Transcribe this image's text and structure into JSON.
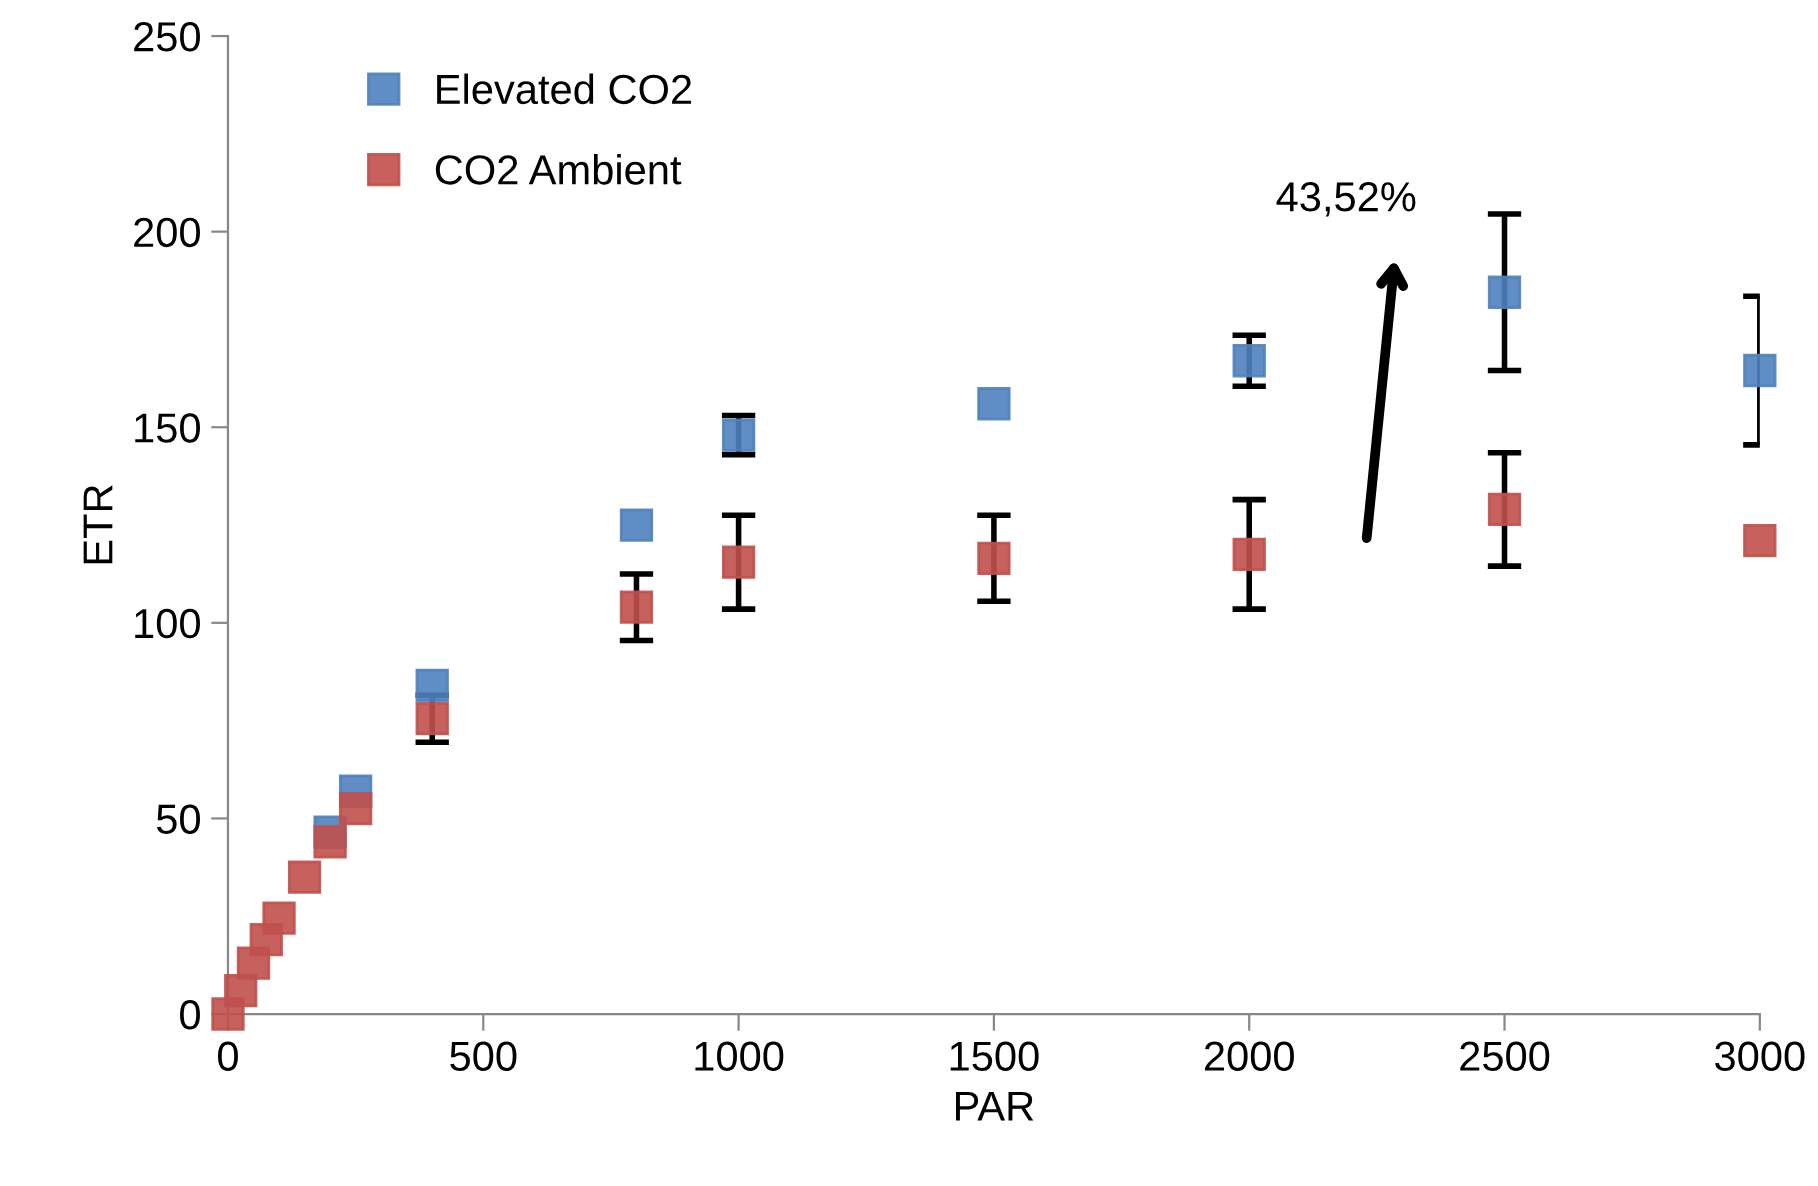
{
  "chart_data": {
    "type": "scatter",
    "xlabel": "PAR",
    "ylabel": "ETR",
    "x": [
      0,
      25,
      50,
      75,
      100,
      150,
      200,
      250,
      400,
      800,
      1000,
      1500,
      2000,
      2500,
      3000
    ],
    "series": [
      {
        "name": "Elevated CO2",
        "color": "#4f81bd",
        "values": [
          null,
          null,
          null,
          null,
          null,
          null,
          46.5,
          57,
          84,
          125,
          148,
          156,
          167,
          184.5,
          164.5
        ],
        "errors": [
          null,
          null,
          null,
          null,
          null,
          null,
          null,
          null,
          null,
          null,
          5,
          null,
          6.5,
          20,
          19
        ]
      },
      {
        "name": "CO2 Ambient",
        "color": "#c0504d",
        "values": [
          0,
          6,
          13,
          19,
          24.5,
          35,
          44,
          52.5,
          75.5,
          104,
          115.5,
          116.5,
          117.5,
          129,
          121
        ],
        "errors": [
          null,
          null,
          null,
          null,
          null,
          null,
          null,
          null,
          6,
          8.5,
          12,
          11,
          14,
          14.5,
          null
        ]
      }
    ],
    "annotations": [
      "43,52%"
    ],
    "xlim": [
      0,
      3000
    ],
    "xticks": [
      0,
      500,
      1000,
      1500,
      2000,
      2500,
      3000
    ],
    "ylim": [
      0,
      250
    ],
    "yticks": [
      0,
      50,
      100,
      150,
      200,
      250
    ],
    "marker": "square",
    "legend": "top left",
    "grid": false
  }
}
